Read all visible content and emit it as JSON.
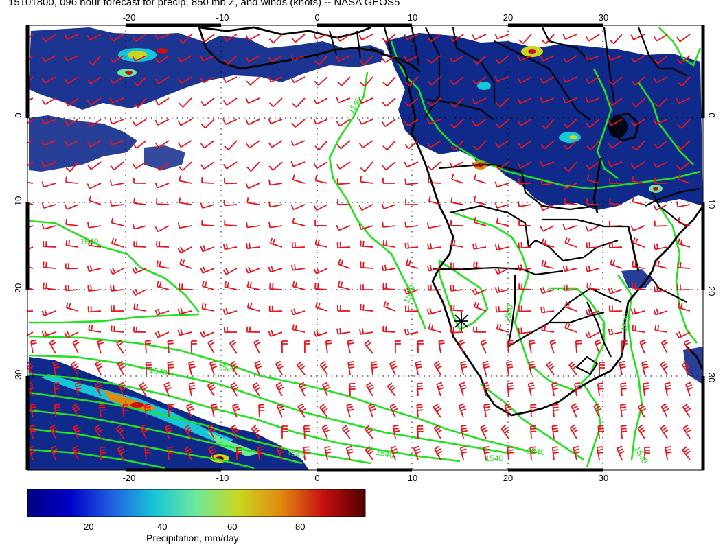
{
  "title": "15101800, 096 hour forecast for precip, 850 mb Z, and winds (knots) -- NASA GEOS5",
  "map": {
    "lon_range": [
      -30,
      41
    ],
    "lat_range": [
      -40,
      10
    ],
    "top_lon_labels": [
      "-20",
      "-10",
      "0",
      "10",
      "20",
      "30"
    ],
    "bottom_lon_labels": [
      "-20",
      "-10",
      "0",
      "10",
      "20",
      "30"
    ],
    "left_lat_labels": [
      "0",
      "-10",
      "-20",
      "-30"
    ],
    "right_lat_labels": [
      "0",
      "-10",
      "-20",
      "-30"
    ],
    "contour_labels": [
      "1540",
      "1540",
      "1520",
      "1520",
      "1540",
      "1540",
      "1540",
      "1500",
      "1540",
      "1520",
      "1540",
      "1540"
    ],
    "colors": {
      "wind_barbs": "#e8141e",
      "contours": "#22e022",
      "coastlines": "#000000",
      "precip_low": "#102a8c",
      "precip_high": "#8b0000"
    }
  },
  "colorbar": {
    "labels": [
      "20",
      "40",
      "60",
      "80"
    ],
    "title": "Precipitation, mm/day",
    "stops": [
      "#00007f",
      "#0000c8",
      "#1f5fe0",
      "#17c6d8",
      "#6ee89a",
      "#c8d820",
      "#e08a10",
      "#c81010",
      "#500000"
    ]
  }
}
